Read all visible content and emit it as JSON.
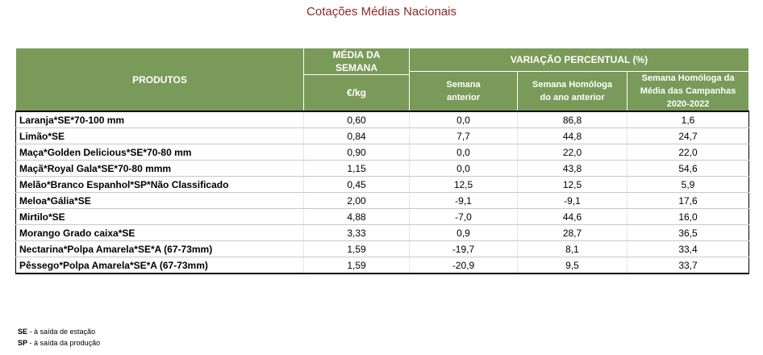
{
  "title": "Cotações Médias Nacionais",
  "header": {
    "produtos": "PRODUTOS",
    "media_line1": "MÉDIA DA",
    "media_line2": "SEMANA",
    "unit": "€/kg",
    "variacao": "VARIAÇÃO PERCENTUAL (%)",
    "semana_anterior_line1": "Semana",
    "semana_anterior_line2": "anterior",
    "homologa_ano_line1": "Semana Homóloga",
    "homologa_ano_line2": "do ano anterior",
    "homologa_media_line1": "Semana Homóloga da",
    "homologa_media_line2": "Média das Campanhas",
    "homologa_media_line3": "2020-2022"
  },
  "rows": [
    {
      "produto": "Laranja*SE*70-100 mm",
      "media": "0,60",
      "anterior": "0,0",
      "ano": "86,8",
      "campanhas": "1,6"
    },
    {
      "produto": "Limão*SE",
      "media": "0,84",
      "anterior": "7,7",
      "ano": "44,8",
      "campanhas": "24,7"
    },
    {
      "produto": "Maça*Golden Delicious*SE*70-80 mm",
      "media": "0,90",
      "anterior": "0,0",
      "ano": "22,0",
      "campanhas": "22,0"
    },
    {
      "produto": "Maçã*Royal Gala*SE*70-80 mmm",
      "media": "1,15",
      "anterior": "0,0",
      "ano": "43,8",
      "campanhas": "54,6"
    },
    {
      "produto": "Melão*Branco Espanhol*SP*Não Classificado",
      "media": "0,45",
      "anterior": "12,5",
      "ano": "12,5",
      "campanhas": "5,9"
    },
    {
      "produto": "Meloa*Gália*SE",
      "media": "2,00",
      "anterior": "-9,1",
      "ano": "-9,1",
      "campanhas": "17,6"
    },
    {
      "produto": "Mirtilo*SE",
      "media": "4,88",
      "anterior": "-7,0",
      "ano": "44,6",
      "campanhas": "16,0"
    },
    {
      "produto": "Morango Grado caixa*SE",
      "media": "3,33",
      "anterior": "0,9",
      "ano": "28,7",
      "campanhas": "36,5"
    },
    {
      "produto": "Nectarina*Polpa Amarela*SE*A (67-73mm)",
      "media": "1,59",
      "anterior": "-19,7",
      "ano": "8,1",
      "campanhas": "33,4"
    },
    {
      "produto": "Pêssego*Polpa Amarela*SE*A (67-73mm)",
      "media": "1,59",
      "anterior": "-20,9",
      "ano": "9,5",
      "campanhas": "33,7"
    }
  ],
  "notes": {
    "se_code": "SE",
    "se_text": " - à saída de estação",
    "sp_code": "SP",
    "sp_text": " - à saída da produção"
  }
}
